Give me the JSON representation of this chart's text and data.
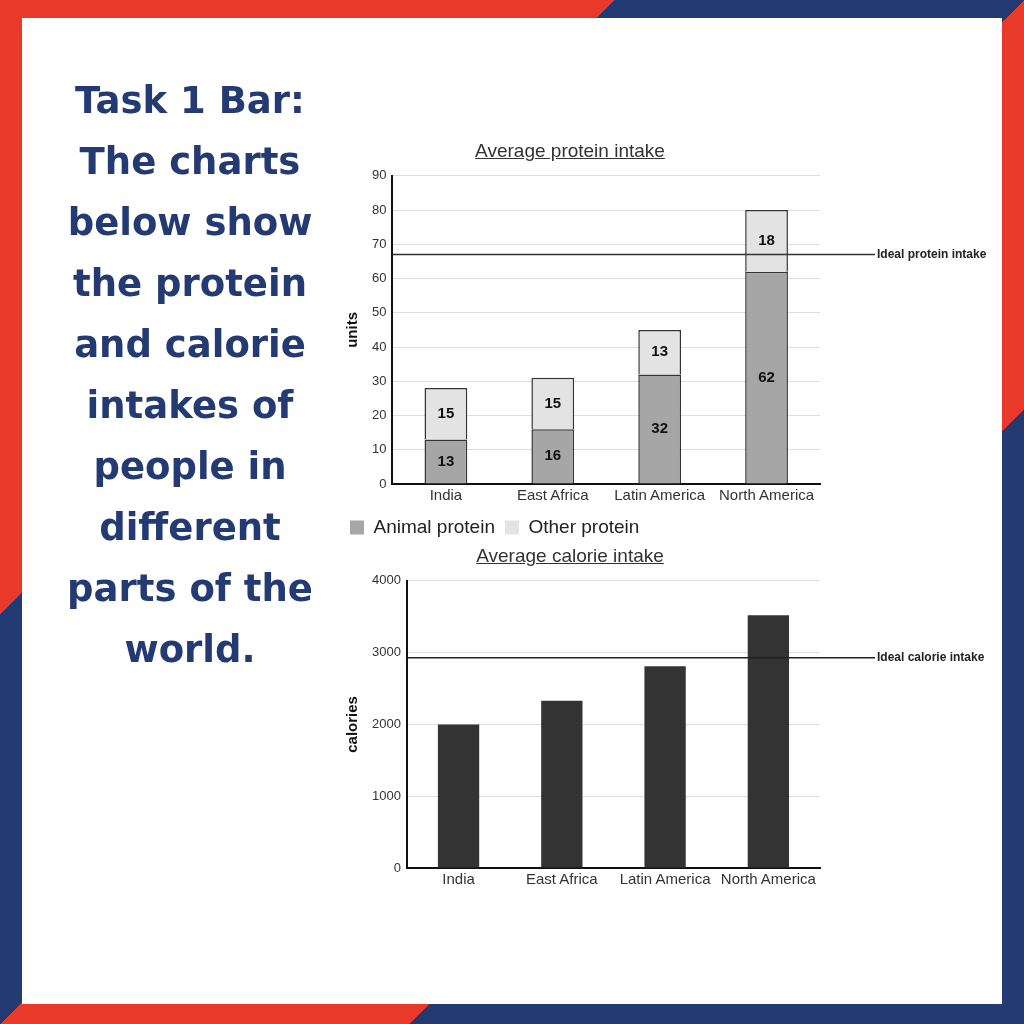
{
  "chart_data": [
    {
      "type": "other",
      "title": "Task 1 Bar: The charts below show the protein and calorie intakes of people in different parts of the world."
    },
    {
      "type": "bar",
      "title": "Average protein intake",
      "ylabel": "units",
      "categories": [
        "India",
        "East Africa",
        "Latin America",
        "North America"
      ],
      "stacked": true,
      "series": [
        {
          "name": "Animal protein",
          "color": "#a6a6a6",
          "values": [
            13,
            16,
            32,
            62
          ]
        },
        {
          "name": "Other protein",
          "color": "#e3e3e3",
          "values": [
            15,
            15,
            13,
            18
          ]
        }
      ],
      "data_labels": true,
      "ylim": [
        0,
        90
      ],
      "yticks": [
        0,
        10,
        20,
        30,
        40,
        50,
        60,
        70,
        80,
        90
      ],
      "grid": "y",
      "legend": "bottom",
      "ref_lines": [
        {
          "axis": "y",
          "value": 67,
          "label": "Ideal protein intake",
          "color": "#333333"
        }
      ]
    },
    {
      "type": "bar",
      "title": "Average calorie intake",
      "ylabel": "calories",
      "categories": [
        "India",
        "East Africa",
        "Latin America",
        "North America"
      ],
      "values": [
        2000,
        2330,
        2810,
        3520
      ],
      "color": "#333333",
      "ylim": [
        0,
        4000
      ],
      "yticks": [
        0,
        1000,
        2000,
        3000,
        4000
      ],
      "grid": "y",
      "ref_lines": [
        {
          "axis": "y",
          "value": 2930,
          "label": "Ideal calorie intake",
          "color": "#222222"
        }
      ]
    }
  ]
}
